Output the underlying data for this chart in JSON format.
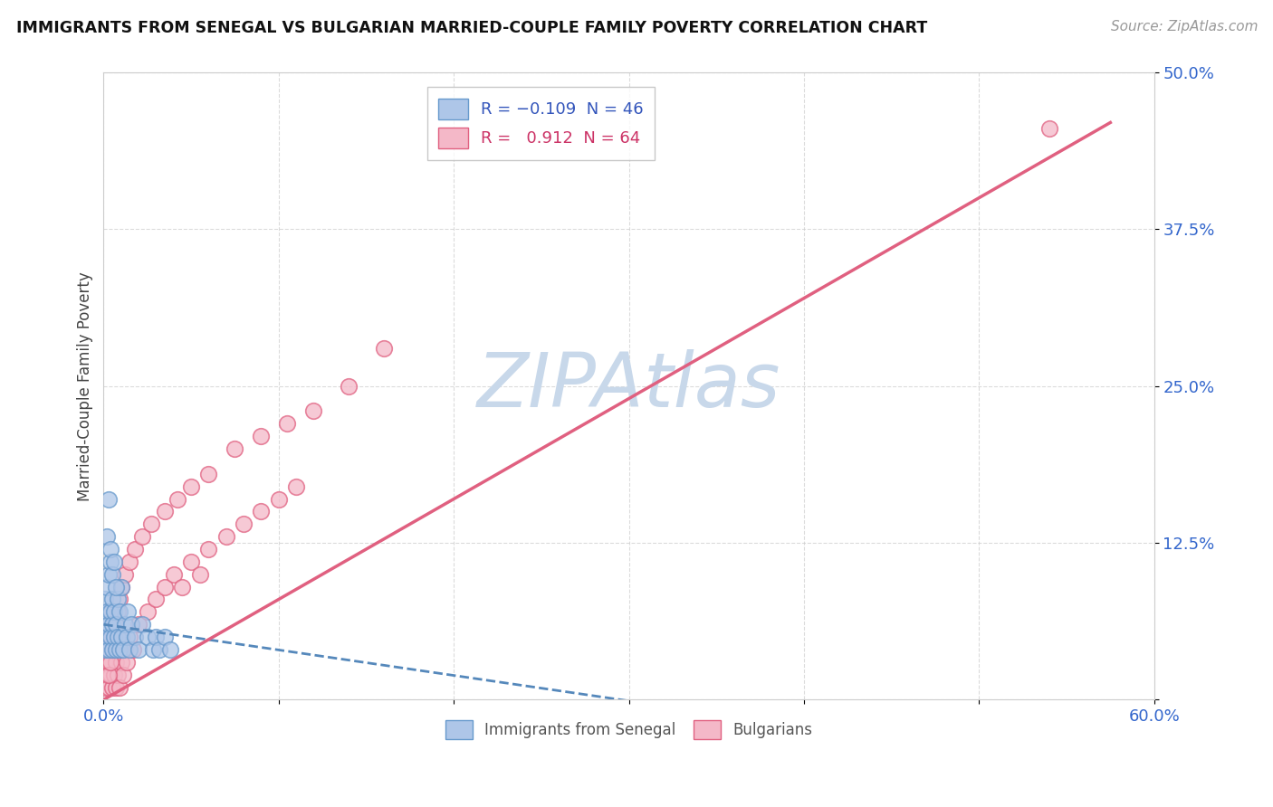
{
  "title": "IMMIGRANTS FROM SENEGAL VS BULGARIAN MARRIED-COUPLE FAMILY POVERTY CORRELATION CHART",
  "source_text": "Source: ZipAtlas.com",
  "ylabel": "Married-Couple Family Poverty",
  "xlim": [
    0.0,
    0.6
  ],
  "ylim": [
    0.0,
    0.5
  ],
  "xticks": [
    0.0,
    0.1,
    0.2,
    0.3,
    0.4,
    0.5,
    0.6
  ],
  "xticklabels": [
    "0.0%",
    "",
    "",
    "",
    "",
    "",
    "60.0%"
  ],
  "yticks": [
    0.0,
    0.125,
    0.25,
    0.375,
    0.5
  ],
  "yticklabels": [
    "",
    "12.5%",
    "25.0%",
    "37.5%",
    "50.0%"
  ],
  "watermark": "ZIPAtlas",
  "watermark_color": "#c8d8ea",
  "background_color": "#ffffff",
  "grid_color": "#cccccc",
  "series": [
    {
      "name": "Immigrants from Senegal",
      "R": -0.109,
      "N": 46,
      "color": "#aec6e8",
      "edge_color": "#6699cc",
      "line_color": "#5588bb",
      "line_style": "--"
    },
    {
      "name": "Bulgarians",
      "R": 0.912,
      "N": 64,
      "color": "#f4b8c8",
      "edge_color": "#e06080",
      "line_color": "#e06080",
      "line_style": "-"
    }
  ],
  "senegal_trend_x": [
    0.0,
    0.32
  ],
  "senegal_trend_y": [
    0.06,
    -0.005
  ],
  "bulgarian_trend_x": [
    0.0,
    0.575
  ],
  "bulgarian_trend_y": [
    0.0,
    0.46
  ],
  "senegal_x": [
    0.001,
    0.001,
    0.001,
    0.002,
    0.002,
    0.002,
    0.003,
    0.003,
    0.003,
    0.004,
    0.004,
    0.004,
    0.005,
    0.005,
    0.005,
    0.006,
    0.006,
    0.007,
    0.007,
    0.008,
    0.008,
    0.009,
    0.009,
    0.01,
    0.01,
    0.011,
    0.012,
    0.013,
    0.014,
    0.015,
    0.016,
    0.018,
    0.02,
    0.022,
    0.025,
    0.028,
    0.03,
    0.032,
    0.035,
    0.038,
    0.002,
    0.003,
    0.004,
    0.005,
    0.006,
    0.007
  ],
  "senegal_y": [
    0.04,
    0.06,
    0.08,
    0.05,
    0.07,
    0.09,
    0.04,
    0.06,
    0.1,
    0.05,
    0.07,
    0.11,
    0.04,
    0.06,
    0.08,
    0.05,
    0.07,
    0.04,
    0.06,
    0.05,
    0.08,
    0.04,
    0.07,
    0.05,
    0.09,
    0.04,
    0.06,
    0.05,
    0.07,
    0.04,
    0.06,
    0.05,
    0.04,
    0.06,
    0.05,
    0.04,
    0.05,
    0.04,
    0.05,
    0.04,
    0.13,
    0.16,
    0.12,
    0.1,
    0.11,
    0.09
  ],
  "bulgarian_x": [
    0.001,
    0.001,
    0.001,
    0.002,
    0.002,
    0.002,
    0.003,
    0.003,
    0.003,
    0.004,
    0.004,
    0.005,
    0.005,
    0.006,
    0.006,
    0.007,
    0.007,
    0.008,
    0.008,
    0.009,
    0.01,
    0.011,
    0.012,
    0.013,
    0.015,
    0.017,
    0.02,
    0.025,
    0.03,
    0.035,
    0.04,
    0.045,
    0.05,
    0.055,
    0.06,
    0.07,
    0.08,
    0.09,
    0.1,
    0.11,
    0.003,
    0.004,
    0.005,
    0.006,
    0.007,
    0.008,
    0.009,
    0.01,
    0.012,
    0.015,
    0.018,
    0.022,
    0.027,
    0.035,
    0.042,
    0.05,
    0.06,
    0.075,
    0.09,
    0.105,
    0.12,
    0.14,
    0.16,
    0.54
  ],
  "bulgarian_y": [
    0.01,
    0.03,
    0.05,
    0.02,
    0.04,
    0.06,
    0.01,
    0.03,
    0.07,
    0.02,
    0.05,
    0.01,
    0.04,
    0.02,
    0.06,
    0.01,
    0.03,
    0.02,
    0.05,
    0.01,
    0.03,
    0.02,
    0.04,
    0.03,
    0.05,
    0.04,
    0.06,
    0.07,
    0.08,
    0.09,
    0.1,
    0.09,
    0.11,
    0.1,
    0.12,
    0.13,
    0.14,
    0.15,
    0.16,
    0.17,
    0.02,
    0.03,
    0.04,
    0.05,
    0.06,
    0.07,
    0.08,
    0.09,
    0.1,
    0.11,
    0.12,
    0.13,
    0.14,
    0.15,
    0.16,
    0.17,
    0.18,
    0.2,
    0.21,
    0.22,
    0.23,
    0.25,
    0.28,
    0.455
  ]
}
